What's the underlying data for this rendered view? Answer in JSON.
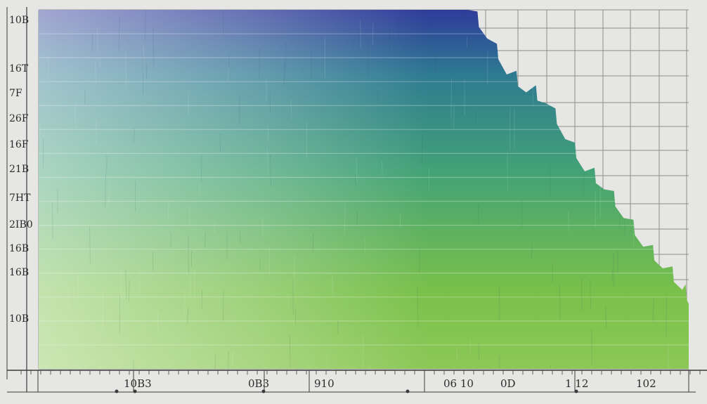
{
  "chart_data": {
    "type": "area",
    "title": "",
    "xlabel": "",
    "ylabel": "",
    "y_tick_labels": [
      "10B",
      "16T",
      "7F",
      "26F",
      "16F",
      "21B",
      "7HT",
      "2IB0",
      "16B",
      "16B",
      "10B"
    ],
    "x_tick_labels": [
      "10B3",
      "0B3",
      "910",
      "06 10",
      "0D",
      "1 12",
      "102"
    ],
    "band_count": 15,
    "grid": true,
    "colors": {
      "top": "#2f3b9a",
      "upper": "#2e7a92",
      "middle": "#43a276",
      "lower": "#79c04a",
      "bottom": "#d6ebcc",
      "background": "#e6e6e4",
      "grid": "#8e8e8e"
    },
    "series": [
      {
        "x": [
          0,
          5,
          10,
          15,
          20,
          25,
          30,
          35,
          40,
          45,
          50,
          55,
          60,
          63,
          66,
          69,
          72,
          75,
          78,
          81,
          84,
          87,
          90,
          93,
          96,
          99,
          100
        ],
        "y": [
          100,
          100,
          100,
          100,
          100,
          100,
          100,
          100,
          100,
          100,
          100,
          100,
          100,
          100,
          100,
          92,
          82,
          77,
          74,
          64,
          55,
          50,
          42,
          34,
          28,
          22,
          18
        ]
      }
    ]
  }
}
